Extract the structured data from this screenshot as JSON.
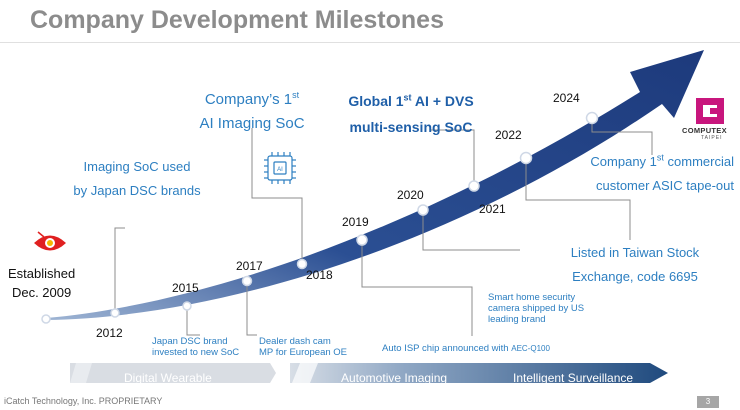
{
  "title": "Company Development Milestones",
  "established": {
    "line1": "Established",
    "line2": "Dec. 2009"
  },
  "years": {
    "y2012": "2012",
    "y2015": "2015",
    "y2017": "2017",
    "y2018": "2018",
    "y2019": "2019",
    "y2020": "2020",
    "y2021": "2021",
    "y2022": "2022",
    "y2024": "2024"
  },
  "callouts": {
    "imaging_used": {
      "line1": "Imaging SoC used",
      "line2": "by Japan DSC brands"
    },
    "ai_imaging": {
      "line1_pre": "Company’s 1",
      "line1_sup": "st",
      "line2": "AI Imaging SoC"
    },
    "global_ai": {
      "line1_pre": "Global 1",
      "line1_sup": "st",
      "line1_post": " AI + DVS",
      "line2": "multi-sensing SoC"
    },
    "asic": {
      "line1_pre": "Company 1",
      "line1_sup": "st",
      "line1_post": " commercial",
      "line2": "customer ASIC tape-out"
    },
    "stock": {
      "line1": "Listed in Taiwan Stock",
      "line2": "Exchange, code 6695"
    }
  },
  "notes": {
    "japan_dsc": {
      "line1": "Japan DSC brand",
      "line2": "invested to new SoC"
    },
    "dashcam": {
      "line1": "Dealer dash cam",
      "line2": "MP for European OE"
    },
    "auto_isp": {
      "text": "Auto ISP chip announced with ",
      "highlight": "AEC-Q100"
    },
    "smart_home": {
      "line1": "Smart home security",
      "line2": "camera shipped by US",
      "line3": "leading brand"
    }
  },
  "segments": {
    "digital": "Digital Wearable",
    "automotive": "Automotive Imaging",
    "surveillance": "Intelligent Surveillance"
  },
  "chip_label": "AI",
  "computex": {
    "word": "COMPUTEX",
    "sub": "TAIPEI"
  },
  "footer": "iCatch Technology, Inc. PROPRIETARY",
  "page_number": "3"
}
